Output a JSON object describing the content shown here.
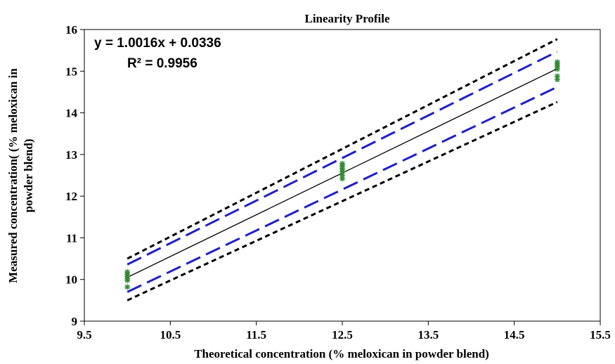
{
  "chart_data": {
    "type": "scatter",
    "title": "Linearity Profile",
    "xlabel": "Theoretical concentration (% meloxican in powder blend)",
    "ylabel_lines": [
      "Measured concentration( (% meloxican in",
      "powder blend)"
    ],
    "xlim": [
      9.5,
      15.5
    ],
    "ylim": [
      9,
      16
    ],
    "x_ticks": [
      "9.5",
      "10.5",
      "11.5",
      "12.5",
      "13.5",
      "14.5",
      "15.5"
    ],
    "y_ticks": [
      "9",
      "10",
      "11",
      "12",
      "13",
      "14",
      "15",
      "16"
    ],
    "annotations": [
      "y = 1.0016x + 0.0336",
      "R² = 0.9956"
    ],
    "grid": false,
    "points": {
      "x": [
        10,
        10,
        10,
        10,
        10,
        10,
        12.5,
        12.5,
        12.5,
        12.5,
        12.5,
        12.5,
        15,
        15,
        15,
        15,
        15,
        15
      ],
      "y": [
        9.82,
        9.98,
        10.02,
        10.08,
        10.12,
        10.18,
        12.42,
        12.5,
        12.58,
        12.65,
        12.72,
        12.78,
        14.8,
        14.88,
        15.05,
        15.12,
        15.18,
        15.22
      ],
      "color": "#2e8b2e",
      "marker": "asterisk"
    },
    "lines": [
      {
        "role": "regression",
        "style": "solid",
        "color": "#000000",
        "x": [
          10,
          15
        ],
        "y": [
          10.05,
          15.06
        ]
      },
      {
        "role": "inner-limit-upper",
        "style": "long-dash",
        "color": "#1f1fcc",
        "x": [
          10,
          15
        ],
        "y": [
          10.36,
          15.47
        ]
      },
      {
        "role": "inner-limit-lower",
        "style": "long-dash",
        "color": "#1f1fcc",
        "x": [
          10,
          15
        ],
        "y": [
          9.7,
          14.62
        ]
      },
      {
        "role": "outer-limit-upper",
        "style": "short-dash",
        "color": "#000000",
        "x": [
          10,
          15
        ],
        "y": [
          10.5,
          15.77
        ]
      },
      {
        "role": "outer-limit-lower",
        "style": "short-dash",
        "color": "#000000",
        "x": [
          10,
          15
        ],
        "y": [
          9.5,
          14.26
        ]
      }
    ]
  }
}
